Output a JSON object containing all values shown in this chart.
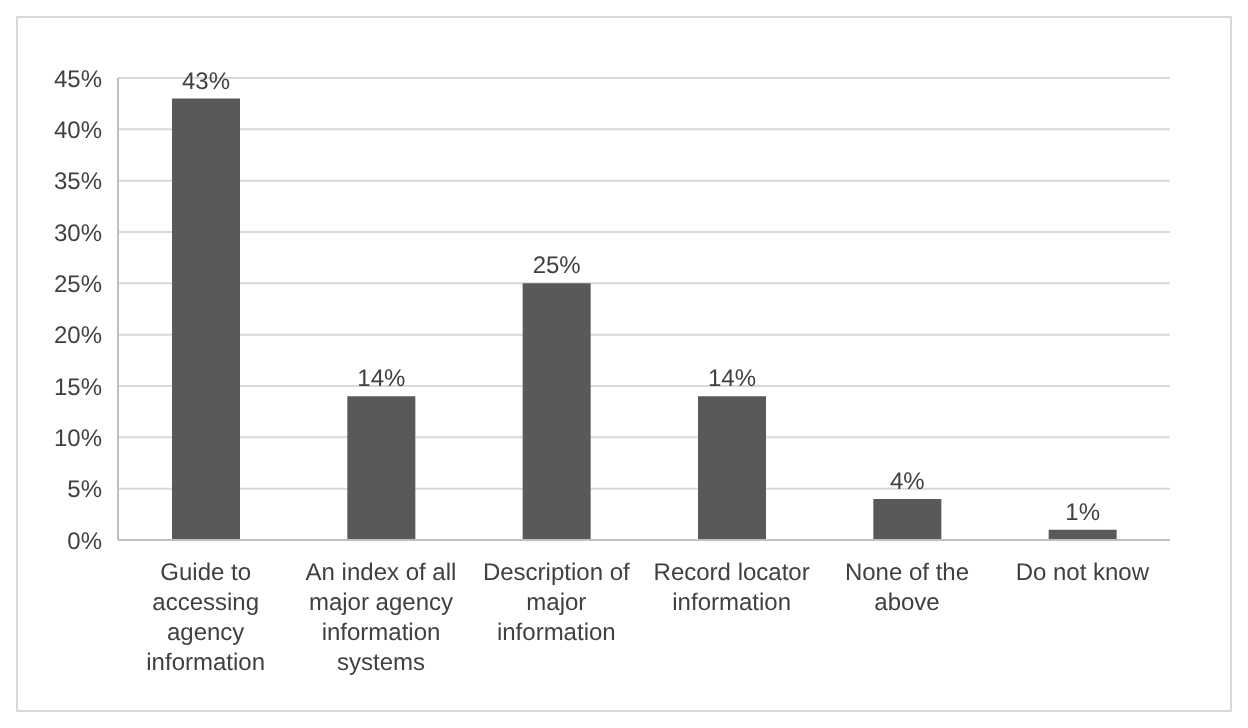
{
  "chart_data": {
    "type": "bar",
    "categories": [
      "Guide to accessing agency information",
      "An index of all major agency information systems",
      "Description of major information",
      "Record locator information",
      "None of the above",
      "Do not know"
    ],
    "values": [
      43,
      14,
      25,
      14,
      4,
      1
    ],
    "value_labels": [
      "43%",
      "14%",
      "25%",
      "14%",
      "4%",
      "1%"
    ],
    "color": "#595959",
    "ylim": [
      0,
      45
    ],
    "yticks": [
      {
        "value": 0,
        "label": "0%"
      },
      {
        "value": 5,
        "label": "5%"
      },
      {
        "value": 10,
        "label": "10%"
      },
      {
        "value": 15,
        "label": "15%"
      },
      {
        "value": 20,
        "label": "20%"
      },
      {
        "value": 25,
        "label": "25%"
      },
      {
        "value": 30,
        "label": "30%"
      },
      {
        "value": 35,
        "label": "35%"
      },
      {
        "value": 40,
        "label": "40%"
      },
      {
        "value": 45,
        "label": "45%"
      }
    ],
    "grid": "y"
  }
}
